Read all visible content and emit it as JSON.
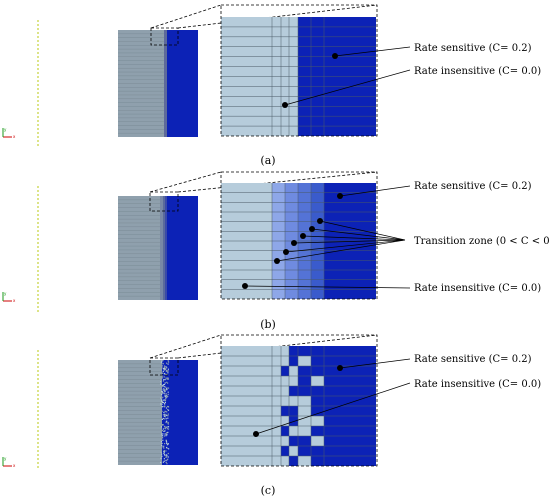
{
  "colors": {
    "rate_sensitive": "#0c22b6",
    "rate_insensitive": "#b6ccdb",
    "overview_insensitive": "#8fa0ad",
    "grid_line": "#4a5a66",
    "dotted_line": "#c6d23a",
    "transition": [
      "#8ea7e8",
      "#6f8be0",
      "#5473d6",
      "#3a5bcc"
    ],
    "axis_x": "#cc0000",
    "axis_y": "#1a9a1a",
    "axis_z": "#1a1acc"
  },
  "panels": [
    {
      "caption": "(a)",
      "labels": {
        "sensitive": "Rate sensitive (C= 0.2)",
        "insensitive": "Rate insensitive (C= 0.0)"
      }
    },
    {
      "caption": "(b)",
      "labels": {
        "sensitive": "Rate sensitive (C= 0.2)",
        "transition": "Transition zone (0 < C < 0.2)",
        "insensitive": "Rate insensitive (C= 0.0)"
      }
    },
    {
      "caption": "(c)",
      "labels": {
        "sensitive": "Rate sensitive (C= 0.2)",
        "insensitive": "Rate insensitive (C= 0.0)"
      }
    }
  ],
  "axis_triad": {
    "x": "x",
    "y": "y",
    "z": "z"
  }
}
